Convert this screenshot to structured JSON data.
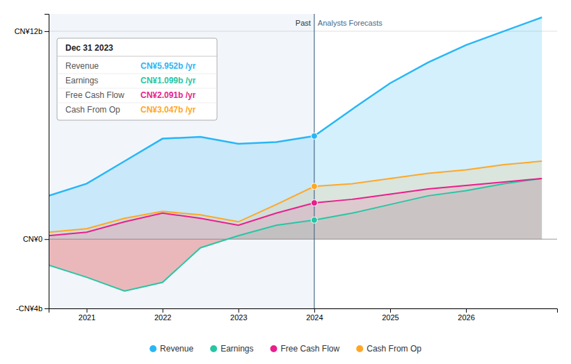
{
  "chart_data": {
    "type": "area",
    "x": [
      2020.5,
      2021.0,
      2021.5,
      2022.0,
      2022.5,
      2023.0,
      2023.5,
      2024.0,
      2024.5,
      2025.0,
      2025.5,
      2026.0,
      2026.5,
      2027.0
    ],
    "series": [
      {
        "name": "Revenue",
        "color": "#29b6f6",
        "values": [
          2.5,
          3.2,
          4.5,
          5.8,
          5.9,
          5.5,
          5.6,
          5.952,
          7.5,
          9.0,
          10.2,
          11.2,
          12.0,
          12.8
        ]
      },
      {
        "name": "Earnings",
        "color": "#26c6a4",
        "values": [
          -1.5,
          -2.2,
          -3.0,
          -2.5,
          -0.5,
          0.2,
          0.8,
          1.099,
          1.5,
          2.0,
          2.5,
          2.8,
          3.2,
          3.5
        ]
      },
      {
        "name": "Free Cash Flow",
        "color": "#e91e8c",
        "values": [
          0.2,
          0.4,
          1.0,
          1.5,
          1.2,
          0.8,
          1.5,
          2.091,
          2.3,
          2.6,
          2.9,
          3.1,
          3.3,
          3.5
        ]
      },
      {
        "name": "Cash From Op",
        "color": "#ffa726",
        "values": [
          0.4,
          0.6,
          1.2,
          1.6,
          1.4,
          1.0,
          2.0,
          3.047,
          3.2,
          3.5,
          3.8,
          4.0,
          4.3,
          4.5
        ]
      }
    ],
    "xlim": [
      2020.5,
      2027.2
    ],
    "xticks": [
      2021,
      2022,
      2023,
      2024,
      2025,
      2026
    ],
    "ylim": [
      -4,
      13
    ],
    "yticks": [
      {
        "value": -4,
        "label": "-CN¥4b"
      },
      {
        "value": 0,
        "label": "CN¥0"
      },
      {
        "value": 12,
        "label": "CN¥12b"
      }
    ],
    "grid": true,
    "legend": "bottom",
    "divider_x": 2024.0,
    "annotations": [
      {
        "text": "Past",
        "x": 2024.0,
        "y": 12.2
      },
      {
        "text": "Analysts Forecasts",
        "x": 2024.0,
        "y": 12.2
      }
    ],
    "markers": {
      "x": 2024.0,
      "values": [
        5.952,
        1.099,
        2.091,
        3.047
      ]
    },
    "tooltip": {
      "title": "Dec 31 2023",
      "rows": [
        {
          "label": "Revenue",
          "value": "CN¥5.952b /yr",
          "color": "#29b6f6"
        },
        {
          "label": "Earnings",
          "value": "CN¥1.099b /yr",
          "color": "#26c6a4"
        },
        {
          "label": "Free Cash Flow",
          "value": "CN¥2.091b /yr",
          "color": "#e91e8c"
        },
        {
          "label": "Cash From Op",
          "value": "CN¥3.047b /yr",
          "color": "#ffa726"
        }
      ]
    }
  }
}
